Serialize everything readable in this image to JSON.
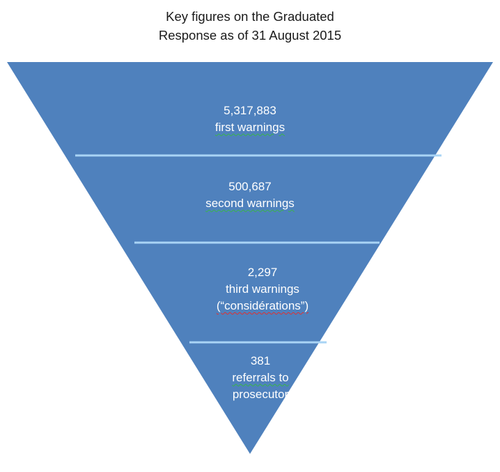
{
  "title": {
    "line1": "Key figures on the Graduated",
    "line2": "Response as of 31 August 2015"
  },
  "colors": {
    "funnel_fill": "#4f81bd",
    "divider": "#a9d4f5",
    "text": "#ffffff"
  },
  "levels": [
    {
      "value": "5,317,883",
      "label_lines": [
        "first warnings"
      ]
    },
    {
      "value": "500,687",
      "label_lines": [
        "second warnings"
      ]
    },
    {
      "value": "2,297",
      "label_lines": [
        "third warnings",
        "(“considérations”)"
      ]
    },
    {
      "value": "381",
      "label_lines": [
        "referrals to",
        "prosecutor"
      ]
    }
  ]
}
